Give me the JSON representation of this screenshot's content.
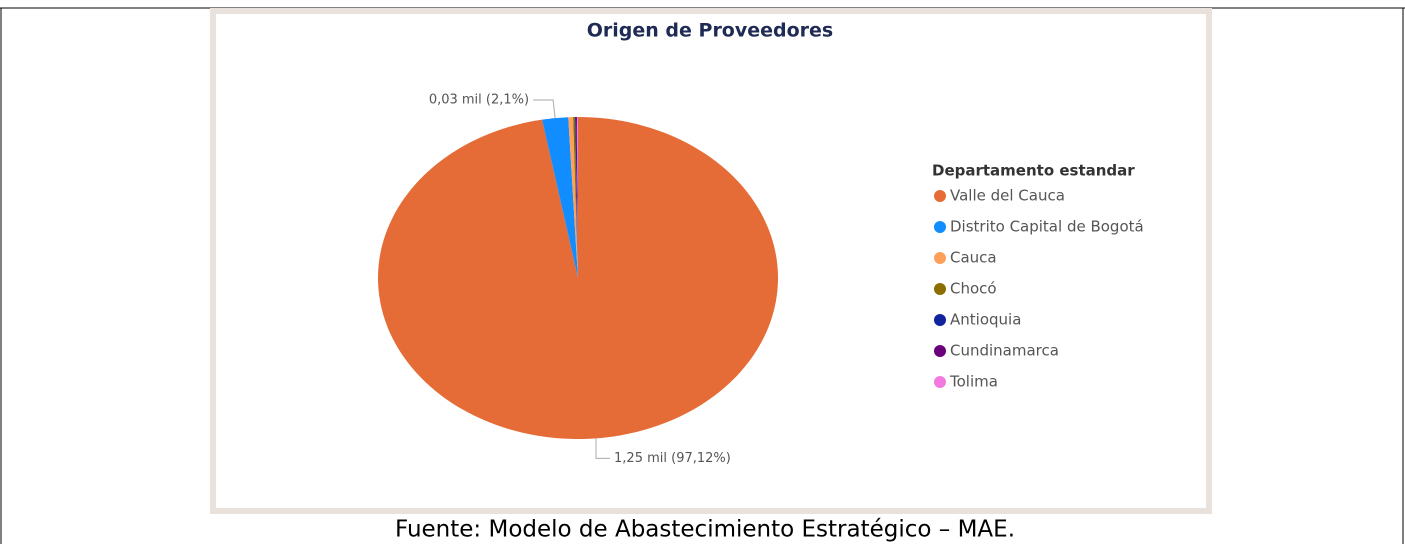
{
  "chart_data": {
    "type": "pie",
    "title": "Origen de Proveedores",
    "legend_title": "Departamento estandar",
    "categories": [
      "Valle del Cauca",
      "Distrito Capital de Bogotá",
      "Cauca",
      "Chocó",
      "Antioquia",
      "Cundinamarca",
      "Tolima"
    ],
    "values": [
      1250,
      27,
      5,
      2,
      1,
      1,
      1
    ],
    "value_labels": [
      "1,25 mil (97,12%)",
      "0,03 mil (2,1%)",
      null,
      null,
      null,
      null,
      null
    ],
    "colors": [
      "#e66c37",
      "#118dff",
      "#ffa05a",
      "#8c6d00",
      "#12239e",
      "#6b007b",
      "#f27ae0"
    ],
    "legend": "right"
  },
  "caption": "Fuente: Modelo de Abastecimiento Estratégico – MAE."
}
